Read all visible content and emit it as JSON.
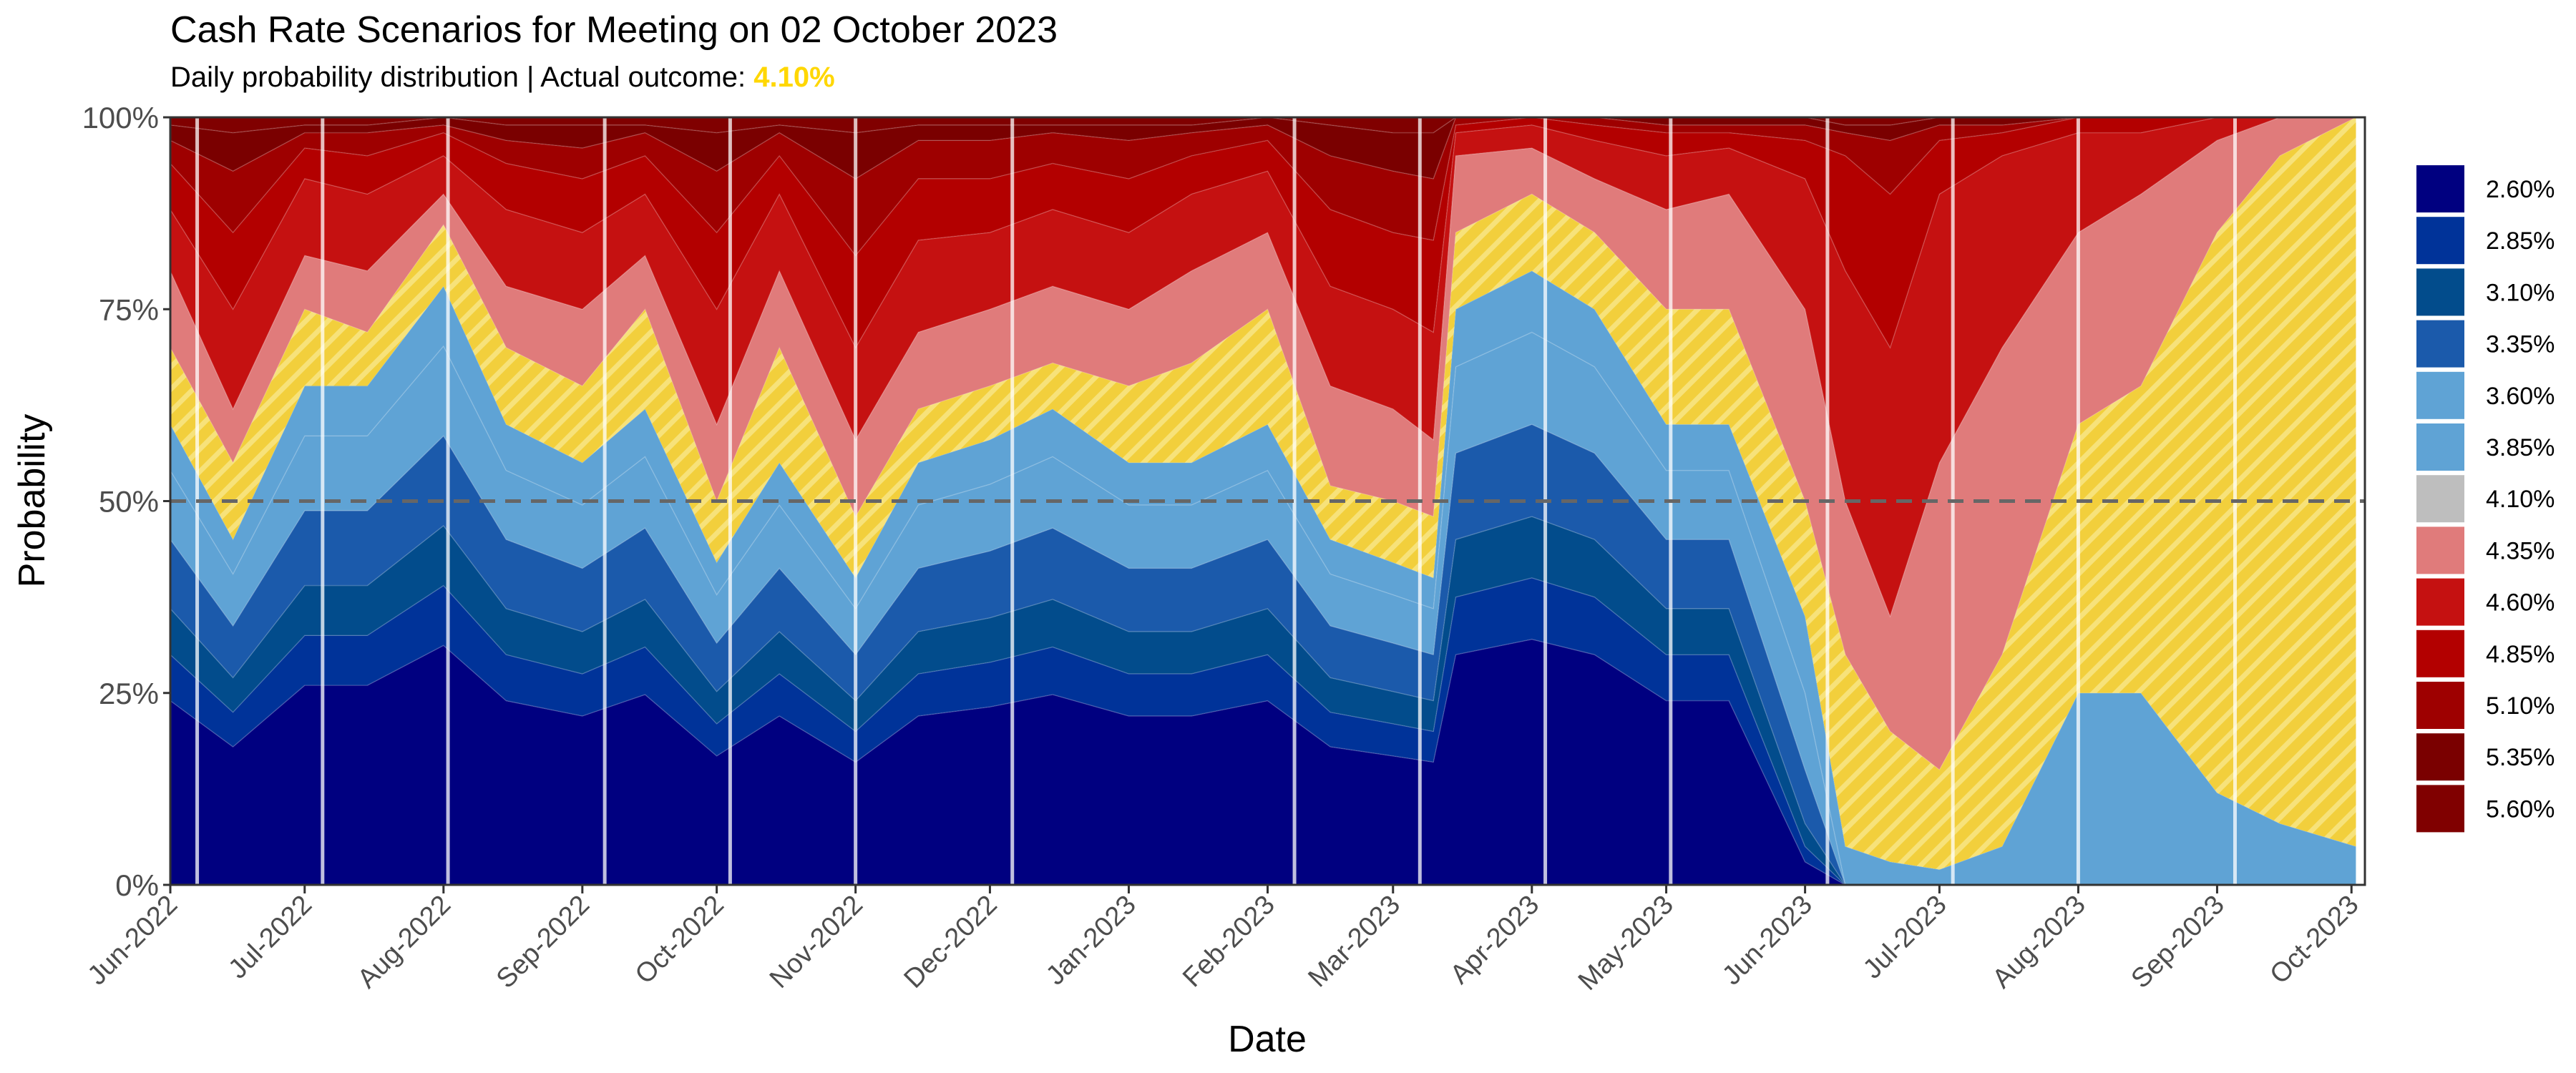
{
  "title": "Cash Rate Scenarios for Meeting on 02 October 2023",
  "subtitle_prefix": "Daily probability distribution | Actual outcome: ",
  "subtitle_outcome": "4.10%",
  "chart_data": {
    "type": "area",
    "stacked": true,
    "xlabel": "Date",
    "ylabel": "Probability",
    "ylim": [
      0,
      100
    ],
    "xlim": [
      "2022-06-01",
      "2023-10-04"
    ],
    "y_ticks": [
      {
        "value": 0,
        "label": "0%"
      },
      {
        "value": 25,
        "label": "25%"
      },
      {
        "value": 50,
        "label": "50%"
      },
      {
        "value": 75,
        "label": "75%"
      },
      {
        "value": 100,
        "label": "100%"
      }
    ],
    "x_ticks": [
      {
        "date": "2022-06-01",
        "label": "Jun-2022"
      },
      {
        "date": "2022-07-01",
        "label": "Jul-2022"
      },
      {
        "date": "2022-08-01",
        "label": "Aug-2022"
      },
      {
        "date": "2022-09-01",
        "label": "Sep-2022"
      },
      {
        "date": "2022-10-01",
        "label": "Oct-2022"
      },
      {
        "date": "2022-11-01",
        "label": "Nov-2022"
      },
      {
        "date": "2022-12-01",
        "label": "Dec-2022"
      },
      {
        "date": "2023-01-01",
        "label": "Jan-2023"
      },
      {
        "date": "2023-02-01",
        "label": "Feb-2023"
      },
      {
        "date": "2023-03-01",
        "label": "Mar-2023"
      },
      {
        "date": "2023-04-01",
        "label": "Apr-2023"
      },
      {
        "date": "2023-05-01",
        "label": "May-2023"
      },
      {
        "date": "2023-06-01",
        "label": "Jun-2023"
      },
      {
        "date": "2023-07-01",
        "label": "Jul-2023"
      },
      {
        "date": "2023-08-01",
        "label": "Aug-2023"
      },
      {
        "date": "2023-09-01",
        "label": "Sep-2023"
      },
      {
        "date": "2023-10-01",
        "label": "Oct-2023"
      }
    ],
    "reference_line": 50,
    "meeting_dates": [
      "2022-06-07",
      "2022-07-05",
      "2022-08-02",
      "2022-09-06",
      "2022-10-04",
      "2022-11-01",
      "2022-12-06",
      "2023-02-07",
      "2023-03-07",
      "2023-04-04",
      "2023-05-02",
      "2023-06-06",
      "2023-07-04",
      "2023-08-01",
      "2023-09-05"
    ],
    "actual_outcome": "4.10%",
    "legend_position": "right",
    "dates": [
      "2022-06-01",
      "2022-06-15",
      "2022-07-01",
      "2022-07-15",
      "2022-08-01",
      "2022-08-15",
      "2022-09-01",
      "2022-09-15",
      "2022-10-01",
      "2022-10-15",
      "2022-11-01",
      "2022-11-15",
      "2022-12-01",
      "2022-12-15",
      "2023-01-01",
      "2023-01-15",
      "2023-02-01",
      "2023-02-15",
      "2023-03-01",
      "2023-03-10",
      "2023-03-15",
      "2023-04-01",
      "2023-04-15",
      "2023-05-01",
      "2023-05-15",
      "2023-06-01",
      "2023-06-10",
      "2023-06-20",
      "2023-07-01",
      "2023-07-15",
      "2023-08-01",
      "2023-08-15",
      "2023-09-01",
      "2023-09-15",
      "2023-10-02"
    ],
    "series": [
      {
        "name": "2.60%",
        "color": "#000080",
        "values": [
          24,
          18,
          26,
          26,
          31.2,
          24,
          22,
          24.8,
          16.8,
          22,
          16,
          22,
          23.2,
          24.8,
          22,
          22,
          24,
          18,
          16.8,
          16,
          30,
          32,
          30,
          24,
          24,
          3,
          0,
          0,
          0,
          0,
          0,
          0,
          0,
          0,
          0
        ]
      },
      {
        "name": "2.85%",
        "color": "#003399",
        "values": [
          6,
          4.5,
          6.5,
          6.5,
          7.8,
          6,
          5.5,
          6.2,
          4.2,
          5.5,
          4,
          5.5,
          5.8,
          6.2,
          5.5,
          5.5,
          6,
          4.5,
          4.2,
          4,
          7.5,
          8,
          7.5,
          6,
          6,
          2,
          0,
          0,
          0,
          0,
          0,
          0,
          0,
          0,
          0
        ]
      },
      {
        "name": "3.10%",
        "color": "#024C8C",
        "values": [
          6,
          4.5,
          6.5,
          6.5,
          7.8,
          6,
          5.5,
          6.2,
          4.2,
          5.5,
          4,
          5.5,
          5.8,
          6.2,
          5.5,
          5.5,
          6,
          4.5,
          4.2,
          4,
          7.5,
          8,
          7.5,
          6,
          6,
          3,
          0,
          0,
          0,
          0,
          0,
          0,
          0,
          0,
          0
        ]
      },
      {
        "name": "3.35%",
        "color": "#1B5AAB",
        "values": [
          9,
          6.75,
          9.75,
          9.75,
          11.7,
          9,
          8.25,
          9.3,
          6.3,
          8.25,
          6,
          8.25,
          8.7,
          9.3,
          8.25,
          8.25,
          9,
          6.75,
          6.3,
          6,
          11.25,
          12,
          11.25,
          9,
          9,
          7,
          0,
          0,
          0,
          0,
          0,
          0,
          0,
          0,
          0
        ]
      },
      {
        "name": "3.60%",
        "color": "#5FA3D5",
        "values": [
          9,
          6.75,
          9.75,
          9.75,
          11.7,
          9,
          8.25,
          9.3,
          6.3,
          8.25,
          6,
          8.25,
          8.7,
          9.3,
          8.25,
          8.25,
          9,
          6.75,
          6.3,
          6,
          11.25,
          12,
          11.25,
          9,
          9,
          10,
          0,
          0,
          0,
          0,
          0,
          0,
          0,
          0,
          0
        ]
      },
      {
        "name": "3.85%",
        "color": "#5FA3D5",
        "values": [
          6,
          4.5,
          6.5,
          6.5,
          7.8,
          6,
          5.5,
          6.2,
          4.2,
          5.5,
          4,
          5.5,
          5.8,
          6.2,
          5.5,
          5.5,
          6,
          4.5,
          4.2,
          4,
          7.5,
          8,
          7.5,
          6,
          6,
          10,
          5,
          3,
          2,
          5,
          25,
          25,
          12,
          8,
          5
        ]
      },
      {
        "name": "4.10%",
        "color": "#BEBEBE",
        "values": [
          10,
          10,
          10,
          7,
          8,
          10,
          10,
          13,
          8,
          15,
          8,
          7,
          7,
          6,
          10,
          13,
          15,
          7,
          8,
          8,
          10,
          10,
          10,
          15,
          15,
          15,
          25,
          17,
          13,
          25,
          35,
          40,
          73,
          87,
          95
        ]
      },
      {
        "name": "4.35%",
        "color": "#E07B7B",
        "values": [
          10,
          7,
          7,
          8,
          4,
          8,
          10,
          7,
          10,
          10,
          10,
          10,
          10,
          10,
          10,
          12,
          10,
          13,
          12,
          10,
          10,
          6,
          7,
          13,
          15,
          25,
          20,
          15,
          40,
          40,
          25,
          25,
          12,
          5,
          0
        ]
      },
      {
        "name": "4.60%",
        "color": "#C51111",
        "values": [
          8,
          13,
          10,
          10,
          5,
          10,
          10,
          8,
          15,
          10,
          12,
          12,
          10,
          10,
          10,
          10,
          8,
          13,
          13,
          14,
          3,
          3,
          5,
          7,
          6,
          17,
          30,
          35,
          35,
          25,
          13,
          8,
          3,
          0,
          0
        ]
      },
      {
        "name": "4.85%",
        "color": "#B30000",
        "values": [
          6,
          10,
          4,
          5,
          3,
          6,
          7,
          5,
          10,
          5,
          12,
          8,
          7,
          6,
          7,
          5,
          4,
          10,
          10,
          12,
          1,
          1,
          2,
          3,
          2,
          5,
          15,
          20,
          7,
          3,
          2,
          2,
          0,
          0,
          0
        ]
      },
      {
        "name": "5.10%",
        "color": "#9E0000",
        "values": [
          3,
          8,
          2,
          3,
          1,
          3,
          4,
          3,
          8,
          3,
          10,
          5,
          5,
          4,
          5,
          3,
          2,
          7,
          8,
          8,
          1,
          0,
          1,
          1,
          1,
          2,
          3,
          7,
          2,
          1,
          0,
          0,
          0,
          0,
          0
        ]
      },
      {
        "name": "5.35%",
        "color": "#7A0000",
        "values": [
          2,
          5,
          1,
          1,
          1,
          2,
          3,
          1,
          5,
          1,
          6,
          2,
          2,
          1,
          2,
          1,
          1,
          4,
          5,
          6,
          0,
          0,
          0,
          1,
          1,
          1,
          1,
          2,
          1,
          1,
          0,
          0,
          0,
          0,
          0
        ]
      },
      {
        "name": "5.60%",
        "color": "#800000",
        "values": [
          1,
          2,
          1,
          1,
          0,
          1,
          1,
          1,
          2,
          1,
          2,
          1,
          1,
          1,
          1,
          1,
          0,
          1,
          2,
          2,
          0,
          0,
          0,
          0,
          0,
          0,
          1,
          1,
          0,
          0,
          0,
          0,
          0,
          0,
          0
        ]
      }
    ]
  }
}
